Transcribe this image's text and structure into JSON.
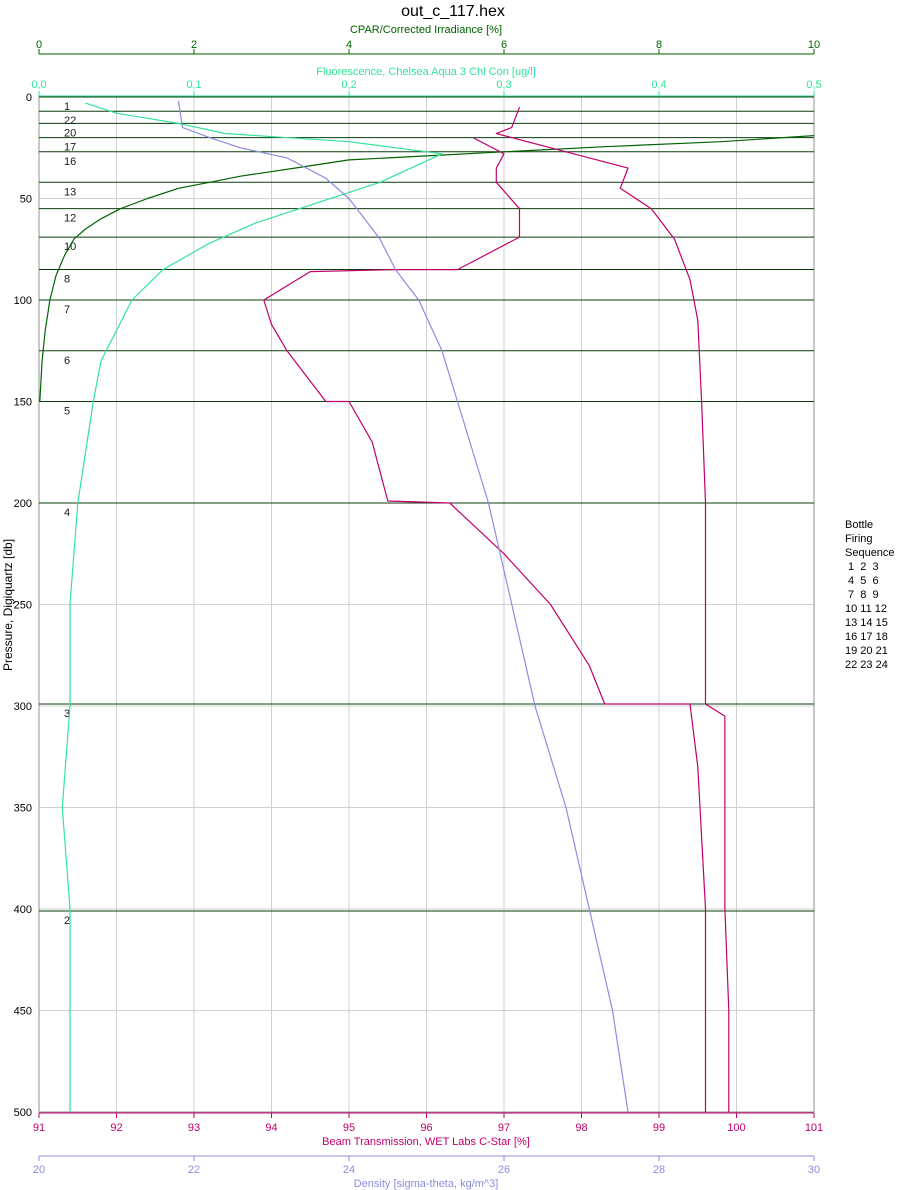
{
  "chart_data": {
    "type": "line",
    "title": "out_c_117.hex",
    "yaxis": {
      "label": "Pressure, Digiquartz [db]",
      "ticks": [
        0,
        50,
        100,
        150,
        200,
        250,
        300,
        350,
        400,
        450,
        500
      ],
      "lim": [
        0,
        500
      ]
    },
    "top_axes": [
      {
        "label": "CPAR/Corrected Irradiance [%]",
        "lim": [
          0,
          10
        ],
        "ticks": [
          0,
          2,
          4,
          6,
          8,
          10
        ],
        "color": "#006400"
      },
      {
        "label": "Fluorescence, Chelsea Aqua 3 Chl Con [ug/l]",
        "lim": [
          0,
          0.5
        ],
        "ticks": [
          "0,0",
          "0,1",
          "0,2",
          "0,3",
          "0,4",
          "0,5"
        ],
        "color": "#33e39a"
      }
    ],
    "bottom_axes": [
      {
        "label": "Beam Transmission, WET Labs C-Star [%]",
        "lim": [
          91,
          101
        ],
        "ticks": [
          91,
          92,
          93,
          94,
          95,
          96,
          97,
          98,
          99,
          100,
          101
        ],
        "color": "#c0006a"
      },
      {
        "label": "Density [sigma-theta, kg/m^3]",
        "lim": [
          20,
          30
        ],
        "ticks": [
          20,
          22,
          24,
          26,
          28,
          30
        ],
        "color": "#8c8ce0"
      }
    ],
    "bottle_depths": [
      {
        "label": "1",
        "p": 0
      },
      {
        "label": "2",
        "p": 401
      },
      {
        "label": "3",
        "p": 299
      },
      {
        "label": "4",
        "p": 200
      },
      {
        "label": "5",
        "p": 150
      },
      {
        "label": "6",
        "p": 125
      },
      {
        "label": "7",
        "p": 100
      },
      {
        "label": "8",
        "p": 85
      },
      {
        "label": "10",
        "p": 69
      },
      {
        "label": "12",
        "p": 55
      },
      {
        "label": "13",
        "p": 42
      },
      {
        "label": "16",
        "p": 27
      },
      {
        "label": "17",
        "p": 20
      },
      {
        "label": "20",
        "p": 13
      },
      {
        "label": "22",
        "p": 7
      }
    ],
    "series": [
      {
        "name": "CPAR",
        "axis": "CPAR/Corrected Irradiance [%]",
        "color": "#006400",
        "points": [
          [
            10,
            19
          ],
          [
            8.8,
            22
          ],
          [
            7.3,
            24.5
          ],
          [
            6,
            27
          ],
          [
            5,
            29
          ],
          [
            4,
            31
          ],
          [
            3.3,
            35
          ],
          [
            2.6,
            39
          ],
          [
            2.2,
            42
          ],
          [
            1.8,
            45
          ],
          [
            1.4,
            50
          ],
          [
            1.05,
            55
          ],
          [
            0.8,
            60
          ],
          [
            0.6,
            65
          ],
          [
            0.45,
            70
          ],
          [
            0.33,
            78
          ],
          [
            0.22,
            88
          ],
          [
            0.14,
            100
          ],
          [
            0.08,
            115
          ],
          [
            0.04,
            130
          ],
          [
            0.01,
            150
          ]
        ]
      },
      {
        "name": "Fluorescence",
        "axis": "Fluorescence, Chelsea Aqua 3 Chl Con [ug/l]",
        "color": "#33e39a",
        "points": [
          [
            0.03,
            3
          ],
          [
            0.05,
            8
          ],
          [
            0.09,
            13
          ],
          [
            0.12,
            18
          ],
          [
            0.2,
            22
          ],
          [
            0.26,
            28
          ],
          [
            0.24,
            35
          ],
          [
            0.22,
            42
          ],
          [
            0.18,
            52
          ],
          [
            0.14,
            62
          ],
          [
            0.11,
            72
          ],
          [
            0.08,
            85
          ],
          [
            0.06,
            100
          ],
          [
            0.05,
            115
          ],
          [
            0.04,
            130
          ],
          [
            0.035,
            150
          ],
          [
            0.025,
            200
          ],
          [
            0.02,
            250
          ],
          [
            0.02,
            300
          ],
          [
            0.015,
            350
          ],
          [
            0.02,
            400
          ],
          [
            0.02,
            450
          ],
          [
            0.02,
            500
          ]
        ]
      },
      {
        "name": "Beam Transmission",
        "axis": "Beam Transmission, WET Labs C-Star [%]",
        "color": "#c0006a",
        "points": [
          [
            97.2,
            5
          ],
          [
            97.1,
            15
          ],
          [
            96.9,
            18
          ],
          [
            97.8,
            27
          ],
          [
            98.6,
            35
          ],
          [
            98.5,
            45
          ],
          [
            98.9,
            55
          ],
          [
            99.2,
            70
          ],
          [
            99.4,
            90
          ],
          [
            99.5,
            110
          ],
          [
            99.55,
            150
          ],
          [
            99.6,
            200
          ],
          [
            99.6,
            260
          ],
          [
            99.6,
            299
          ],
          [
            99.85,
            305
          ],
          [
            99.85,
            400
          ],
          [
            99.9,
            450
          ],
          [
            99.9,
            500
          ]
        ]
      },
      {
        "name": "Beam Transmission (upcast)",
        "axis": "Beam Transmission, WET Labs C-Star [%]",
        "color": "#c0006a",
        "points": [
          [
            96.6,
            20
          ],
          [
            97.0,
            28
          ],
          [
            96.9,
            35
          ],
          [
            96.9,
            42
          ],
          [
            97.2,
            55
          ],
          [
            97.2,
            69
          ],
          [
            96.4,
            85
          ],
          [
            95.6,
            85
          ],
          [
            94.5,
            86
          ],
          [
            93.9,
            100
          ],
          [
            94.0,
            112
          ],
          [
            94.2,
            125
          ],
          [
            94.5,
            140
          ],
          [
            94.7,
            150
          ],
          [
            95.0,
            150
          ],
          [
            95.3,
            170
          ],
          [
            95.5,
            199
          ],
          [
            96.3,
            200
          ],
          [
            97.0,
            225
          ],
          [
            97.6,
            250
          ],
          [
            98.1,
            280
          ],
          [
            98.3,
            299
          ],
          [
            99.4,
            299
          ],
          [
            99.5,
            330
          ],
          [
            99.6,
            400
          ],
          [
            99.6,
            450
          ],
          [
            99.6,
            500
          ]
        ]
      },
      {
        "name": "Density",
        "axis": "Density [sigma-theta, kg/m^3]",
        "color": "#8c8ce0",
        "points": [
          [
            21.8,
            2
          ],
          [
            21.85,
            15
          ],
          [
            22.2,
            20
          ],
          [
            22.6,
            25
          ],
          [
            23.2,
            30
          ],
          [
            23.7,
            40
          ],
          [
            24.0,
            50
          ],
          [
            24.2,
            60
          ],
          [
            24.4,
            70
          ],
          [
            24.6,
            85
          ],
          [
            24.9,
            100
          ],
          [
            25.2,
            125
          ],
          [
            25.4,
            150
          ],
          [
            25.8,
            200
          ],
          [
            26.1,
            250
          ],
          [
            26.4,
            300
          ],
          [
            26.8,
            350
          ],
          [
            27.1,
            400
          ],
          [
            27.4,
            450
          ],
          [
            27.6,
            500
          ]
        ]
      }
    ]
  },
  "legend": {
    "title_lines": [
      "Bottle",
      "Firing",
      "Sequence"
    ],
    "rows": [
      " 1  2  3",
      " 4  5  6",
      " 7  8  9",
      "10 11 12",
      "13 14 15",
      "16 17 18",
      "19 20 21",
      "22 23 24"
    ]
  }
}
